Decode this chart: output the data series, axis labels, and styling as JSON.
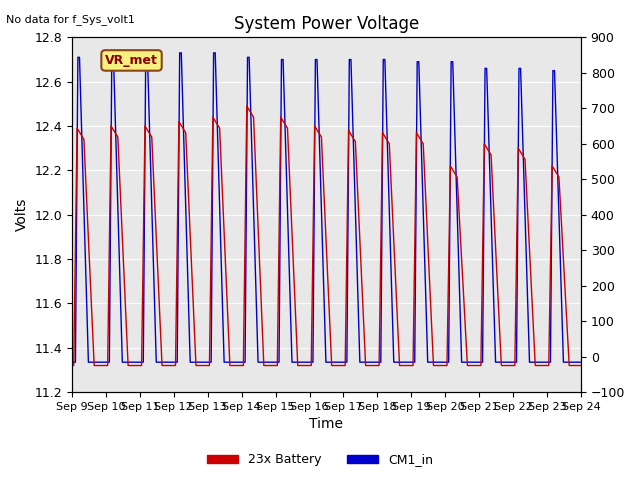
{
  "title": "System Power Voltage",
  "xlabel": "Time",
  "ylabel": "Volts",
  "top_left_text": "No data for f_Sys_volt1",
  "annotation_text": "VR_met",
  "ylim_left": [
    11.2,
    12.8
  ],
  "ylim_right": [
    -100,
    900
  ],
  "yticks_left": [
    11.2,
    11.4,
    11.6,
    11.8,
    12.0,
    12.2,
    12.4,
    12.6,
    12.8
  ],
  "yticks_right": [
    -100,
    0,
    100,
    200,
    300,
    400,
    500,
    600,
    700,
    800,
    900
  ],
  "xtick_labels": [
    "Sep 9",
    "Sep 10",
    "Sep 11",
    "Sep 12",
    "Sep 13",
    "Sep 14",
    "Sep 15",
    "Sep 16",
    "Sep 17",
    "Sep 18",
    "Sep 19",
    "Sep 20",
    "Sep 21",
    "Sep 22",
    "Sep 23",
    "Sep 24"
  ],
  "red_label": "23x Battery",
  "blue_label": "CM1_in",
  "background_color": "#e8e8e8",
  "figure_color": "#ffffff",
  "red_color": "#cc0000",
  "blue_color": "#0000cc",
  "n_cycles": 15,
  "red_base": 11.32,
  "red_peak_values": [
    12.39,
    12.4,
    12.4,
    12.42,
    12.44,
    12.49,
    12.44,
    12.4,
    12.38,
    12.37,
    12.37,
    12.22,
    12.32,
    12.3,
    12.22
  ],
  "blue_base": 11.335,
  "blue_peak_values": [
    12.71,
    12.72,
    12.73,
    12.73,
    12.73,
    12.71,
    12.7,
    12.7,
    12.7,
    12.7,
    12.69,
    12.69,
    12.66,
    12.66,
    12.65
  ]
}
